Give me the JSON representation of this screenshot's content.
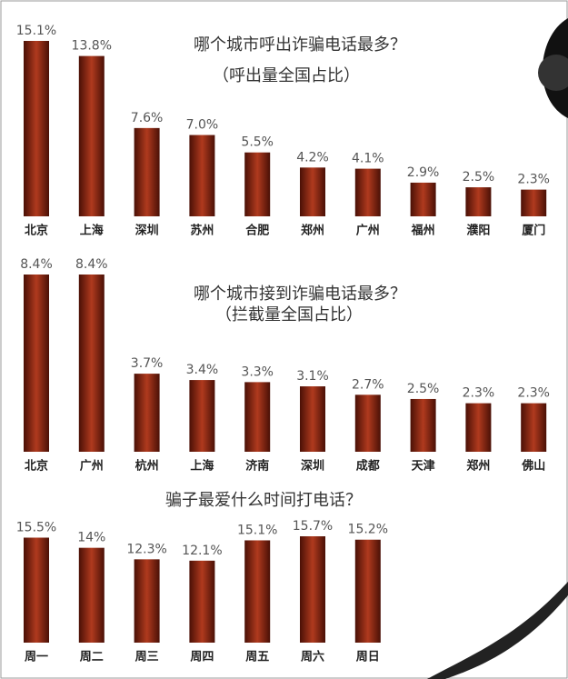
{
  "chart_data": [
    {
      "type": "bar",
      "title": "哪个城市呼出诈骗电话最多？",
      "subtitle": "（呼出量全国占比）",
      "categories": [
        "北京",
        "上海",
        "深圳",
        "苏州",
        "合肥",
        "郑州",
        "广州",
        "福州",
        "濮阳",
        "厦门"
      ],
      "values": [
        15.1,
        13.8,
        7.6,
        7.0,
        5.5,
        4.2,
        4.1,
        2.9,
        2.5,
        2.3
      ],
      "value_labels": [
        "15.1%",
        "13.8%",
        "7.6%",
        "7.0%",
        "5.5%",
        "4.2%",
        "4.1%",
        "2.9%",
        "2.5%",
        "2.3%"
      ],
      "color": "#b03a1e"
    },
    {
      "type": "bar",
      "title": "哪个城市接到诈骗电话最多？",
      "subtitle": "（拦截量全国占比）",
      "categories": [
        "北京",
        "广州",
        "杭州",
        "上海",
        "济南",
        "深圳",
        "成都",
        "天津",
        "郑州",
        "佛山"
      ],
      "values": [
        8.4,
        8.4,
        3.7,
        3.4,
        3.3,
        3.1,
        2.7,
        2.5,
        2.3,
        2.3
      ],
      "value_labels": [
        "8.4%",
        "8.4%",
        "3.7%",
        "3.4%",
        "3.3%",
        "3.1%",
        "2.7%",
        "2.5%",
        "2.3%",
        "2.3%"
      ],
      "color": "#b03a1e"
    },
    {
      "type": "bar",
      "title": "骗子最爱什么时间打电话？",
      "categories": [
        "周一",
        "周二",
        "周三",
        "周四",
        "周五",
        "周六",
        "周日"
      ],
      "values": [
        15.5,
        14,
        12.3,
        12.1,
        15.1,
        15.7,
        15.2
      ],
      "value_labels": [
        "15.5%",
        "14%",
        "12.3%",
        "12.1%",
        "15.1%",
        "15.7%",
        "15.2%"
      ],
      "color": "#b03a1e"
    }
  ]
}
